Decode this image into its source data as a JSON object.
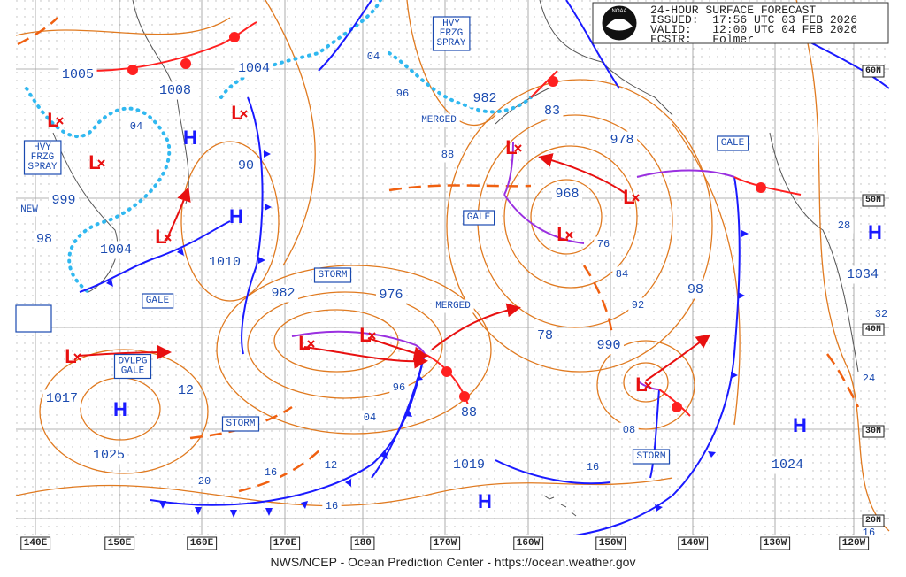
{
  "header": {
    "title": "24-HOUR SURFACE FORECAST",
    "lines": [
      "ISSUED:  17:56 UTC 03 FEB 2026",
      "VALID:   12:00 UTC 04 FEB 2026",
      "FCSTR:   Folmer"
    ]
  },
  "logo": "NOAA",
  "footer": "NWS/NCEP - Ocean Prediction Center - https://ocean.weather.gov",
  "longitudes": [
    "140E",
    "150E",
    "160E",
    "170E",
    "180",
    "170W",
    "160W",
    "150W",
    "140W",
    "130W",
    "120W"
  ],
  "latitudes": [
    "60N",
    "50N",
    "40N",
    "30N",
    "20N"
  ],
  "pressures": [
    "1005",
    "1008",
    "1004",
    "90",
    "999",
    "98",
    "1004",
    "1010",
    "982",
    "976",
    "982",
    "83",
    "978",
    "968",
    "98",
    "1034",
    "78",
    "990",
    "12",
    "1017",
    "1025",
    "88",
    "1019",
    "1024"
  ],
  "isobar_labels": [
    "04",
    "96",
    "04",
    "88",
    "76",
    "84",
    "92",
    "96",
    "04",
    "08",
    "16",
    "12",
    "16",
    "20",
    "16",
    "28",
    "32",
    "24",
    "16"
  ],
  "warnings": [
    {
      "lines": [
        "HVY",
        "FRZG",
        "SPRAY"
      ]
    },
    {
      "lines": [
        "HVY",
        "FRZG",
        "SPRAY"
      ]
    },
    {
      "lines": [
        "GALE"
      ]
    },
    {
      "lines": [
        "GALE"
      ]
    },
    {
      "lines": [
        "STORM"
      ]
    },
    {
      "lines": [
        "GALE"
      ]
    },
    {
      "lines": [
        "DVLPG",
        "GALE"
      ]
    },
    {
      "lines": [
        "STORM"
      ]
    },
    {
      "lines": [
        "STORM"
      ]
    }
  ],
  "notes": [
    "MERGED",
    "MERGED",
    "NEW"
  ],
  "highs": [
    "H",
    "H",
    "H",
    "H",
    "H",
    "H"
  ],
  "lows": [
    "L",
    "L",
    "L",
    "L",
    "L",
    "L",
    "L",
    "L",
    "L",
    "L",
    "L"
  ]
}
